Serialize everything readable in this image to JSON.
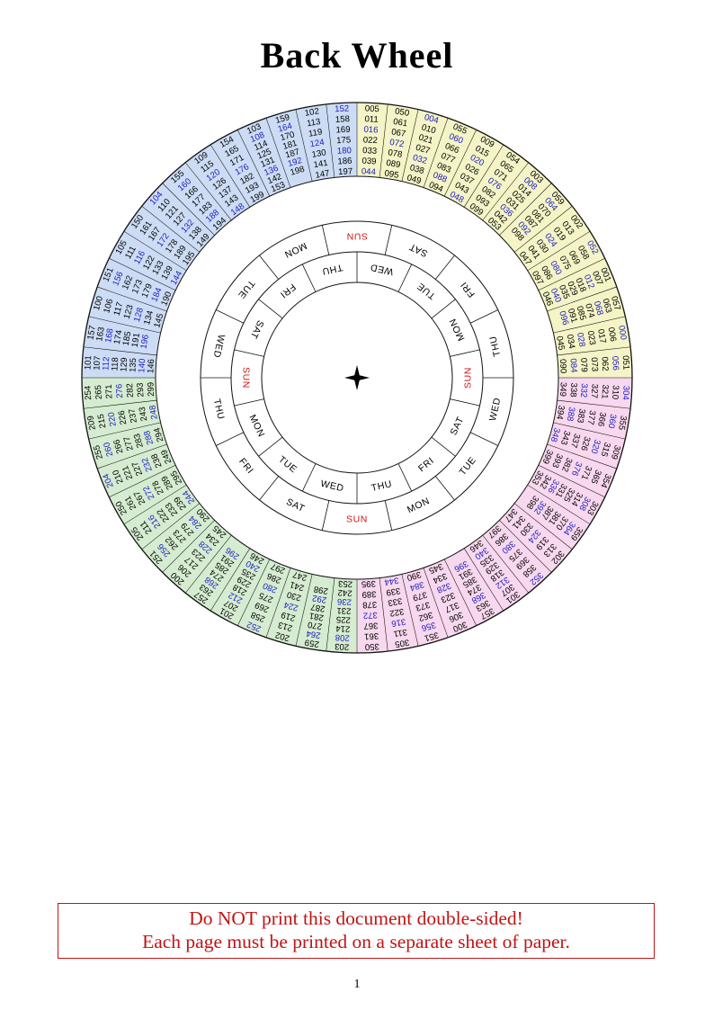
{
  "page": {
    "title": "Back Wheel",
    "warning_line1": "Do NOT print this document double-sided!",
    "warning_line2": "Each page must be printed on a separate sheet of paper.",
    "page_number": "1"
  },
  "colors": {
    "yellow": "#f4f4c6",
    "pink": "#f8d8ee",
    "green": "#d5ecd0",
    "blue": "#ccdcf4",
    "leap_text": "#2020c0",
    "normal_text": "#000000",
    "sunday_text": "#cc1414",
    "line": "#111111"
  },
  "wheel": {
    "center_marker": "four-point-star",
    "day_ring_outer": [
      "SUN",
      "SAT",
      "FRI",
      "THU",
      "WED",
      "TUE",
      "MON",
      "SUN",
      "SAT",
      "FRI",
      "THU",
      "WED",
      "TUE",
      "MON"
    ],
    "day_ring_inner": [
      "WED",
      "TUE",
      "MON",
      "SUN",
      "SAT",
      "FRI",
      "THU",
      "WED",
      "TUE",
      "MON",
      "SUN",
      "SAT",
      "FRI",
      "THU"
    ],
    "sectors": [
      {
        "color": "yellow",
        "years": [
          "005",
          "011",
          "016",
          "022",
          "033",
          "039",
          "044",
          "050",
          "061",
          "067",
          "072",
          "078",
          "089",
          "095"
        ]
      },
      {
        "color": "yellow",
        "years": [
          "004",
          "010",
          "021",
          "027",
          "032",
          "038",
          "049",
          "055",
          "060",
          "066",
          "077",
          "083",
          "088",
          "094"
        ]
      },
      {
        "color": "yellow",
        "years": [
          "009",
          "015",
          "020",
          "026",
          "037",
          "043",
          "048",
          "054",
          "065",
          "071",
          "076",
          "082",
          "093",
          "099"
        ]
      },
      {
        "color": "yellow",
        "years": [
          "003",
          "008",
          "014",
          "025",
          "031",
          "036",
          "042",
          "053",
          "059",
          "064",
          "070",
          "081",
          "087",
          "092",
          "098"
        ]
      },
      {
        "color": "yellow",
        "years": [
          "002",
          "013",
          "019",
          "024",
          "030",
          "041",
          "047",
          "052",
          "058",
          "069",
          "075",
          "080",
          "086",
          "097"
        ]
      },
      {
        "color": "yellow",
        "years": [
          "001",
          "007",
          "012",
          "018",
          "029",
          "035",
          "040",
          "046",
          "057",
          "063",
          "068",
          "074",
          "085",
          "091",
          "096"
        ]
      },
      {
        "color": "yellow",
        "years": [
          "000",
          "006",
          "017",
          "023",
          "028",
          "034",
          "045",
          "051",
          "056",
          "062",
          "073",
          "079",
          "084",
          "090"
        ]
      },
      {
        "color": "pink",
        "years": [
          "304",
          "310",
          "321",
          "327",
          "332",
          "338",
          "349",
          "355",
          "360",
          "366",
          "377",
          "383",
          "388",
          "394"
        ]
      },
      {
        "color": "pink",
        "years": [
          "309",
          "315",
          "320",
          "326",
          "337",
          "343",
          "348",
          "354",
          "365",
          "371",
          "376",
          "382",
          "393",
          "399"
        ]
      },
      {
        "color": "pink",
        "years": [
          "303",
          "308",
          "314",
          "325",
          "331",
          "336",
          "342",
          "353",
          "359",
          "364",
          "370",
          "381",
          "387",
          "392",
          "398"
        ]
      },
      {
        "color": "pink",
        "years": [
          "302",
          "313",
          "319",
          "324",
          "330",
          "341",
          "347",
          "352",
          "358",
          "369",
          "375",
          "380",
          "386",
          "397"
        ]
      },
      {
        "color": "pink",
        "years": [
          "301",
          "307",
          "312",
          "318",
          "329",
          "335",
          "340",
          "346",
          "357",
          "363",
          "368",
          "374",
          "385",
          "391",
          "396"
        ]
      },
      {
        "color": "pink",
        "years": [
          "300",
          "306",
          "317",
          "323",
          "328",
          "334",
          "345",
          "351",
          "356",
          "362",
          "373",
          "379",
          "384",
          "390"
        ]
      },
      {
        "color": "pink",
        "years": [
          "305",
          "311",
          "316",
          "322",
          "333",
          "339",
          "344",
          "350",
          "361",
          "367",
          "372",
          "378",
          "389",
          "395"
        ]
      },
      {
        "color": "green",
        "years": [
          "203",
          "208",
          "214",
          "225",
          "231",
          "236",
          "242",
          "253",
          "259",
          "264",
          "270",
          "281",
          "287",
          "292",
          "298"
        ]
      },
      {
        "color": "green",
        "years": [
          "202",
          "213",
          "219",
          "224",
          "230",
          "241",
          "247",
          "252",
          "258",
          "269",
          "275",
          "280",
          "286",
          "297"
        ]
      },
      {
        "color": "green",
        "years": [
          "201",
          "207",
          "212",
          "218",
          "229",
          "235",
          "240",
          "246",
          "257",
          "263",
          "268",
          "274",
          "285",
          "291",
          "296"
        ]
      },
      {
        "color": "green",
        "years": [
          "200",
          "206",
          "217",
          "223",
          "228",
          "234",
          "245",
          "251",
          "256",
          "262",
          "273",
          "279",
          "284",
          "290"
        ]
      },
      {
        "color": "green",
        "years": [
          "205",
          "211",
          "216",
          "222",
          "233",
          "239",
          "244",
          "250",
          "261",
          "267",
          "272",
          "278",
          "289",
          "295"
        ]
      },
      {
        "color": "green",
        "years": [
          "204",
          "210",
          "221",
          "227",
          "232",
          "238",
          "249",
          "255",
          "260",
          "266",
          "277",
          "283",
          "288",
          "294"
        ]
      },
      {
        "color": "green",
        "years": [
          "209",
          "215",
          "220",
          "226",
          "237",
          "243",
          "248",
          "254",
          "265",
          "271",
          "276",
          "282",
          "293",
          "299"
        ]
      },
      {
        "color": "blue",
        "years": [
          "101",
          "107",
          "112",
          "118",
          "129",
          "135",
          "140",
          "146",
          "157",
          "163",
          "168",
          "174",
          "185",
          "191",
          "196"
        ]
      },
      {
        "color": "blue",
        "years": [
          "100",
          "106",
          "117",
          "123",
          "128",
          "134",
          "145",
          "151",
          "156",
          "162",
          "173",
          "179",
          "184",
          "190"
        ]
      },
      {
        "color": "blue",
        "years": [
          "105",
          "111",
          "116",
          "122",
          "133",
          "139",
          "144",
          "150",
          "161",
          "167",
          "172",
          "178",
          "189",
          "195"
        ]
      },
      {
        "color": "blue",
        "years": [
          "104",
          "110",
          "121",
          "127",
          "132",
          "138",
          "149",
          "155",
          "160",
          "166",
          "177",
          "183",
          "188",
          "194"
        ]
      },
      {
        "color": "blue",
        "years": [
          "109",
          "115",
          "120",
          "126",
          "137",
          "143",
          "148",
          "154",
          "165",
          "171",
          "176",
          "182",
          "193",
          "199"
        ]
      },
      {
        "color": "blue",
        "years": [
          "103",
          "108",
          "114",
          "125",
          "131",
          "136",
          "142",
          "153",
          "159",
          "164",
          "170",
          "181",
          "187",
          "192",
          "198"
        ]
      },
      {
        "color": "blue",
        "years": [
          "102",
          "113",
          "119",
          "124",
          "130",
          "141",
          "147",
          "152",
          "158",
          "169",
          "175",
          "180",
          "186",
          "197"
        ]
      }
    ]
  }
}
